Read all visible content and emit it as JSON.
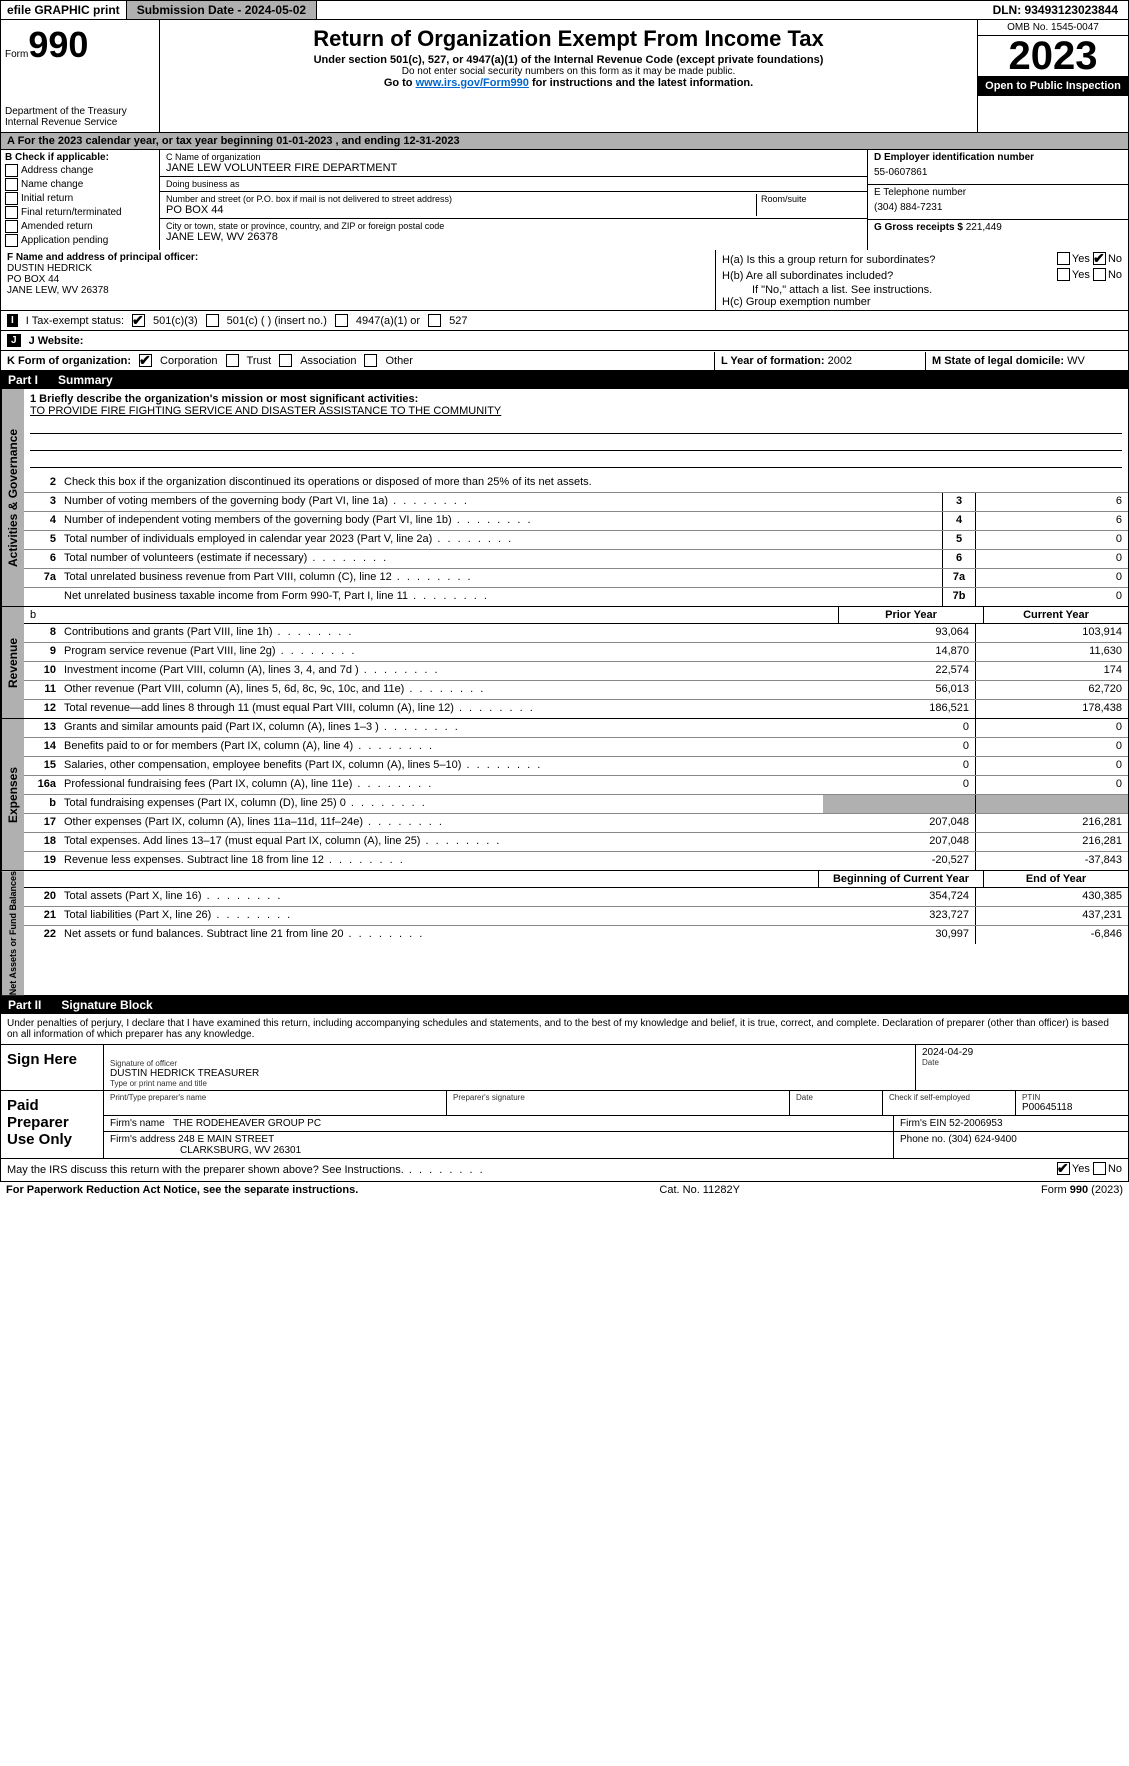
{
  "topbar": {
    "efile": "efile GRAPHIC print",
    "submission": "Submission Date - 2024-05-02",
    "dln": "DLN: 93493123023844"
  },
  "header": {
    "form_prefix": "Form",
    "form_num": "990",
    "dept": "Department of the Treasury\nInternal Revenue Service",
    "title": "Return of Organization Exempt From Income Tax",
    "sub1": "Under section 501(c), 527, or 4947(a)(1) of the Internal Revenue Code (except private foundations)",
    "sub2": "Do not enter social security numbers on this form as it may be made public.",
    "sub3_pre": "Go to ",
    "sub3_link": "www.irs.gov/Form990",
    "sub3_post": " for instructions and the latest information.",
    "omb": "OMB No. 1545-0047",
    "year": "2023",
    "inspect": "Open to Public Inspection"
  },
  "taxyear": "A  For the 2023 calendar year, or tax year beginning 01-01-2023   , and ending 12-31-2023",
  "box_b": {
    "label": "B Check if applicable:",
    "items": [
      "Address change",
      "Name change",
      "Initial return",
      "Final return/terminated",
      "Amended return",
      "Application pending"
    ]
  },
  "box_c": {
    "name_label": "C Name of organization",
    "name": "JANE LEW VOLUNTEER FIRE DEPARTMENT",
    "dba_label": "Doing business as",
    "dba": "",
    "street_label": "Number and street (or P.O. box if mail is not delivered to street address)",
    "street": "PO BOX 44",
    "room_label": "Room/suite",
    "city_label": "City or town, state or province, country, and ZIP or foreign postal code",
    "city": "JANE LEW, WV  26378"
  },
  "box_d": {
    "label": "D Employer identification number",
    "val": "55-0607861"
  },
  "box_e": {
    "label": "E Telephone number",
    "val": "(304) 884-7231"
  },
  "box_g": {
    "label": "G Gross receipts $",
    "val": "221,449"
  },
  "box_f": {
    "label": "F  Name and address of principal officer:",
    "name": "DUSTIN HEDRICK",
    "addr1": "PO BOX 44",
    "addr2": "JANE LEW, WV  26378"
  },
  "box_h": {
    "a": "H(a)  Is this a group return for subordinates?",
    "b": "H(b)  Are all subordinates included?",
    "b_note": "If \"No,\" attach a list. See instructions.",
    "c": "H(c)  Group exemption number",
    "yes": "Yes",
    "no": "No"
  },
  "row_i": {
    "label": "I  Tax-exempt status:",
    "opts": [
      "501(c)(3)",
      "501(c) (  ) (insert no.)",
      "4947(a)(1) or",
      "527"
    ]
  },
  "row_j": {
    "label": "J  Website:",
    "val": ""
  },
  "row_k": {
    "label": "K Form of organization:",
    "opts": [
      "Corporation",
      "Trust",
      "Association",
      "Other"
    ],
    "l_label": "L Year of formation:",
    "l_val": "2002",
    "m_label": "M State of legal domicile:",
    "m_val": "WV"
  },
  "part1": {
    "pn": "Part I",
    "title": "Summary"
  },
  "mission": {
    "label": "1   Briefly describe the organization's mission or most significant activities:",
    "text": "TO PROVIDE FIRE FIGHTING SERVICE AND DISASTER ASSISTANCE TO THE COMMUNITY"
  },
  "line2": "Check this box       if the organization discontinued its operations or disposed of more than 25% of its net assets.",
  "gov_lines": [
    {
      "n": "3",
      "d": "Number of voting members of the governing body (Part VI, line 1a)",
      "box": "3",
      "v": "6"
    },
    {
      "n": "4",
      "d": "Number of independent voting members of the governing body (Part VI, line 1b)",
      "box": "4",
      "v": "6"
    },
    {
      "n": "5",
      "d": "Total number of individuals employed in calendar year 2023 (Part V, line 2a)",
      "box": "5",
      "v": "0"
    },
    {
      "n": "6",
      "d": "Total number of volunteers (estimate if necessary)",
      "box": "6",
      "v": "0"
    },
    {
      "n": "7a",
      "d": "Total unrelated business revenue from Part VIII, column (C), line 12",
      "box": "7a",
      "v": "0"
    },
    {
      "n": "",
      "d": "Net unrelated business taxable income from Form 990-T, Part I, line 11",
      "box": "7b",
      "v": "0"
    }
  ],
  "col_headers": {
    "prior": "Prior Year",
    "current": "Current Year"
  },
  "revenue_lines": [
    {
      "n": "8",
      "d": "Contributions and grants (Part VIII, line 1h)",
      "p": "93,064",
      "c": "103,914"
    },
    {
      "n": "9",
      "d": "Program service revenue (Part VIII, line 2g)",
      "p": "14,870",
      "c": "11,630"
    },
    {
      "n": "10",
      "d": "Investment income (Part VIII, column (A), lines 3, 4, and 7d )",
      "p": "22,574",
      "c": "174"
    },
    {
      "n": "11",
      "d": "Other revenue (Part VIII, column (A), lines 5, 6d, 8c, 9c, 10c, and 11e)",
      "p": "56,013",
      "c": "62,720"
    },
    {
      "n": "12",
      "d": "Total revenue—add lines 8 through 11 (must equal Part VIII, column (A), line 12)",
      "p": "186,521",
      "c": "178,438"
    }
  ],
  "expense_lines": [
    {
      "n": "13",
      "d": "Grants and similar amounts paid (Part IX, column (A), lines 1–3 )",
      "p": "0",
      "c": "0"
    },
    {
      "n": "14",
      "d": "Benefits paid to or for members (Part IX, column (A), line 4)",
      "p": "0",
      "c": "0"
    },
    {
      "n": "15",
      "d": "Salaries, other compensation, employee benefits (Part IX, column (A), lines 5–10)",
      "p": "0",
      "c": "0"
    },
    {
      "n": "16a",
      "d": "Professional fundraising fees (Part IX, column (A), line 11e)",
      "p": "0",
      "c": "0"
    },
    {
      "n": "b",
      "d": "Total fundraising expenses (Part IX, column (D), line 25) 0",
      "p": "",
      "c": "",
      "shaded": true
    },
    {
      "n": "17",
      "d": "Other expenses (Part IX, column (A), lines 11a–11d, 11f–24e)",
      "p": "207,048",
      "c": "216,281"
    },
    {
      "n": "18",
      "d": "Total expenses. Add lines 13–17 (must equal Part IX, column (A), line 25)",
      "p": "207,048",
      "c": "216,281"
    },
    {
      "n": "19",
      "d": "Revenue less expenses. Subtract line 18 from line 12",
      "p": "-20,527",
      "c": "-37,843"
    }
  ],
  "net_headers": {
    "begin": "Beginning of Current Year",
    "end": "End of Year"
  },
  "net_lines": [
    {
      "n": "20",
      "d": "Total assets (Part X, line 16)",
      "p": "354,724",
      "c": "430,385"
    },
    {
      "n": "21",
      "d": "Total liabilities (Part X, line 26)",
      "p": "323,727",
      "c": "437,231"
    },
    {
      "n": "22",
      "d": "Net assets or fund balances. Subtract line 21 from line 20",
      "p": "30,997",
      "c": "-6,846"
    }
  ],
  "side_labels": {
    "gov": "Activities & Governance",
    "rev": "Revenue",
    "exp": "Expenses",
    "net": "Net Assets or Fund Balances"
  },
  "part2": {
    "pn": "Part II",
    "title": "Signature Block"
  },
  "sig_decl": "Under penalties of perjury, I declare that I have examined this return, including accompanying schedules and statements, and to the best of my knowledge and belief, it is true, correct, and complete. Declaration of preparer (other than officer) is based on all information of which preparer has any knowledge.",
  "sign_here": {
    "label": "Sign Here",
    "sig_label": "Signature of officer",
    "name": "DUSTIN HEDRICK  TREASURER",
    "name_label": "Type or print name and title",
    "date_label": "Date",
    "date": "2024-04-29"
  },
  "paid_prep": {
    "label": "Paid Preparer Use Only",
    "r1": {
      "c1_label": "Print/Type preparer's name",
      "c2_label": "Preparer's signature",
      "c3_label": "Date",
      "c4_label": "Check       if self-employed",
      "c5_label": "PTIN",
      "c5": "P00645118"
    },
    "r2": {
      "label": "Firm's name",
      "val": "THE RODEHEAVER GROUP PC",
      "ein_label": "Firm's EIN",
      "ein": "52-2006953"
    },
    "r3": {
      "label": "Firm's address",
      "val": "248 E MAIN STREET",
      "phone_label": "Phone no.",
      "phone": "(304) 624-9400"
    },
    "r3b": "CLARKSBURG, WV  26301"
  },
  "discuss": {
    "text": "May the IRS discuss this return with the preparer shown above? See Instructions.",
    "yes": "Yes",
    "no": "No"
  },
  "footer": {
    "left": "For Paperwork Reduction Act Notice, see the separate instructions.",
    "mid": "Cat. No. 11282Y",
    "right_pre": "Form ",
    "right_form": "990",
    "right_post": " (2023)"
  }
}
